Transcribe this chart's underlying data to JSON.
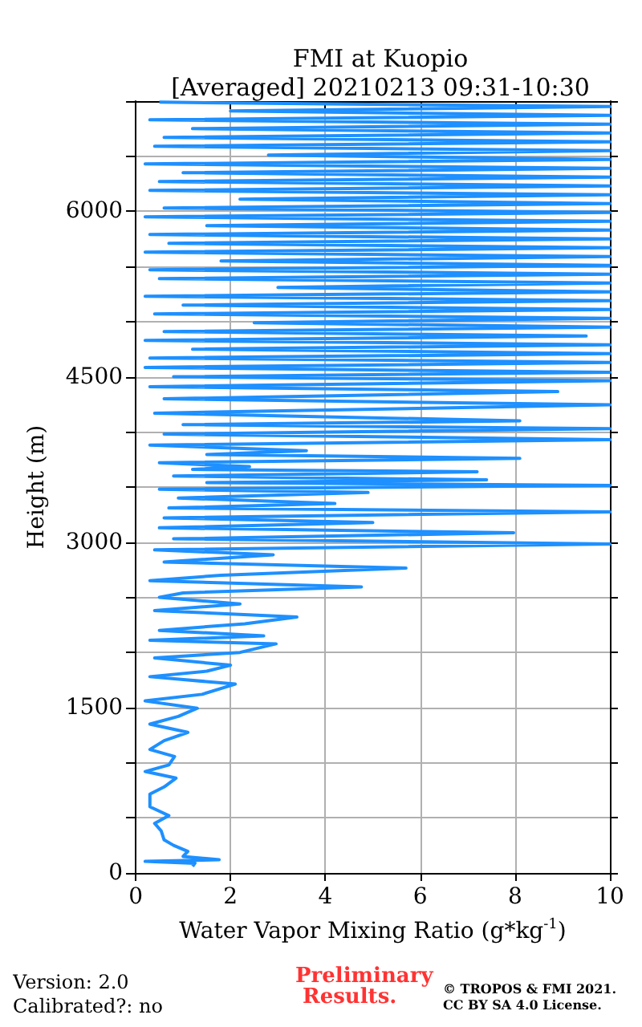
{
  "chart_data": {
    "type": "line",
    "title": "FMI at Kuopio",
    "subtitle": "[Averaged] 20210213 09:31-10:30",
    "xlabel": "Water Vapor Mixing Ratio (g*kg$^{-1}$)",
    "ylabel": "Height (m)",
    "xlim": [
      0,
      10
    ],
    "xticks": [
      0,
      2,
      4,
      6,
      8,
      10
    ],
    "ylim": [
      0,
      7000
    ],
    "yticks": [
      0,
      {
        "value": 500,
        "label": null
      },
      {
        "value": 1000,
        "label": null
      },
      1500,
      {
        "value": 2000,
        "label": null
      },
      {
        "value": 2500,
        "label": null
      },
      3000,
      {
        "value": 3500,
        "label": null
      },
      {
        "value": 4000,
        "label": null
      },
      4500,
      {
        "value": 5000,
        "label": null
      },
      {
        "value": 5500,
        "label": null
      },
      6000,
      {
        "value": 6500,
        "label": null
      },
      {
        "value": 7000,
        "label": null
      }
    ],
    "grid": true,
    "marker": "none",
    "line_style": "solid",
    "series": [
      {
        "color": "#1e90ff",
        "x": [
          1.2,
          1.25,
          0.2,
          1.76,
          1.0,
          1.1,
          0.8,
          0.6,
          0.54,
          0.4,
          0.7,
          0.3,
          0.3,
          0.6,
          0.85,
          0.2,
          0.7,
          0.82,
          0.3,
          0.6,
          1.1,
          0.3,
          0.9,
          1.3,
          0.2,
          1.4,
          2.1,
          0.3,
          1.5,
          2.0,
          0.4,
          2.2,
          2.96,
          0.3,
          2.7,
          0.5,
          2.3,
          3.4,
          0.4,
          2.2,
          0.5,
          1.0,
          4.76,
          0.3,
          1.8,
          5.7,
          0.6,
          2.9,
          0.4,
          10,
          0.8,
          7.97,
          0.5,
          5.0,
          0.6,
          10,
          0.7,
          4.2,
          0.9,
          4.9,
          0.5,
          10,
          1.5,
          7.4,
          0.8,
          7.2,
          1.2,
          2.4,
          0.5,
          8.1,
          1.5,
          3.6,
          0.3,
          10,
          0.6,
          10,
          1.0,
          8.1,
          0.4,
          10,
          0.6,
          8.9,
          0.3,
          10,
          0.8,
          10,
          0.2,
          10,
          0.3,
          10,
          1.2,
          10,
          0.2,
          9.5,
          0.6,
          10,
          2.5,
          10,
          0.4,
          10,
          1.0,
          10,
          0.2,
          10,
          3.0,
          10,
          0.5,
          10,
          0.3,
          10,
          1.8,
          10,
          0.2,
          10,
          0.7,
          10,
          0.3,
          10,
          1.5,
          10,
          0.2,
          10,
          0.6,
          10,
          2.2,
          10,
          0.3,
          10,
          0.5,
          10,
          1.0,
          10,
          0.2,
          10,
          2.8,
          10,
          0.4,
          10,
          0.6,
          10,
          1.2,
          10,
          0.3,
          10,
          2.0,
          10,
          0.5
        ],
        "values": [
          60,
          88,
          105,
          120,
          150,
          195,
          250,
          300,
          380,
          450,
          520,
          600,
          715,
          780,
          860,
          920,
          980,
          1056,
          1120,
          1200,
          1275,
          1350,
          1420,
          1494,
          1560,
          1620,
          1713,
          1780,
          1830,
          1884,
          1950,
          2000,
          2078,
          2110,
          2150,
          2200,
          2260,
          2321,
          2380,
          2440,
          2500,
          2540,
          2594,
          2650,
          2700,
          2765,
          2820,
          2886,
          2930,
          2983,
          3030,
          3085,
          3130,
          3178,
          3220,
          3275,
          3310,
          3350,
          3400,
          3450,
          3480,
          3515,
          3540,
          3565,
          3600,
          3638,
          3660,
          3685,
          3720,
          3760,
          3795,
          3830,
          3880,
          3930,
          3980,
          4030,
          4065,
          4100,
          4170,
          4245,
          4300,
          4365,
          4410,
          4465,
          4500,
          4540,
          4585,
          4630,
          4670,
          4710,
          4750,
          4790,
          4830,
          4870,
          4910,
          4950,
          4990,
          5030,
          5070,
          5110,
          5150,
          5190,
          5230,
          5270,
          5310,
          5350,
          5390,
          5430,
          5470,
          5510,
          5550,
          5590,
          5630,
          5670,
          5710,
          5750,
          5790,
          5830,
          5870,
          5910,
          5950,
          5990,
          6030,
          6070,
          6110,
          6150,
          6190,
          6230,
          6270,
          6310,
          6350,
          6390,
          6430,
          6470,
          6510,
          6550,
          6590,
          6630,
          6670,
          6710,
          6750,
          6790,
          6830,
          6870,
          6910,
          6950,
          6990
        ]
      }
    ],
    "annotations": [
      "Version: 2.0",
      "Calibrated?: no",
      "Preliminary Results.",
      "© TROPOS & FMI 2021. CC BY SA 4.0 License."
    ]
  }
}
